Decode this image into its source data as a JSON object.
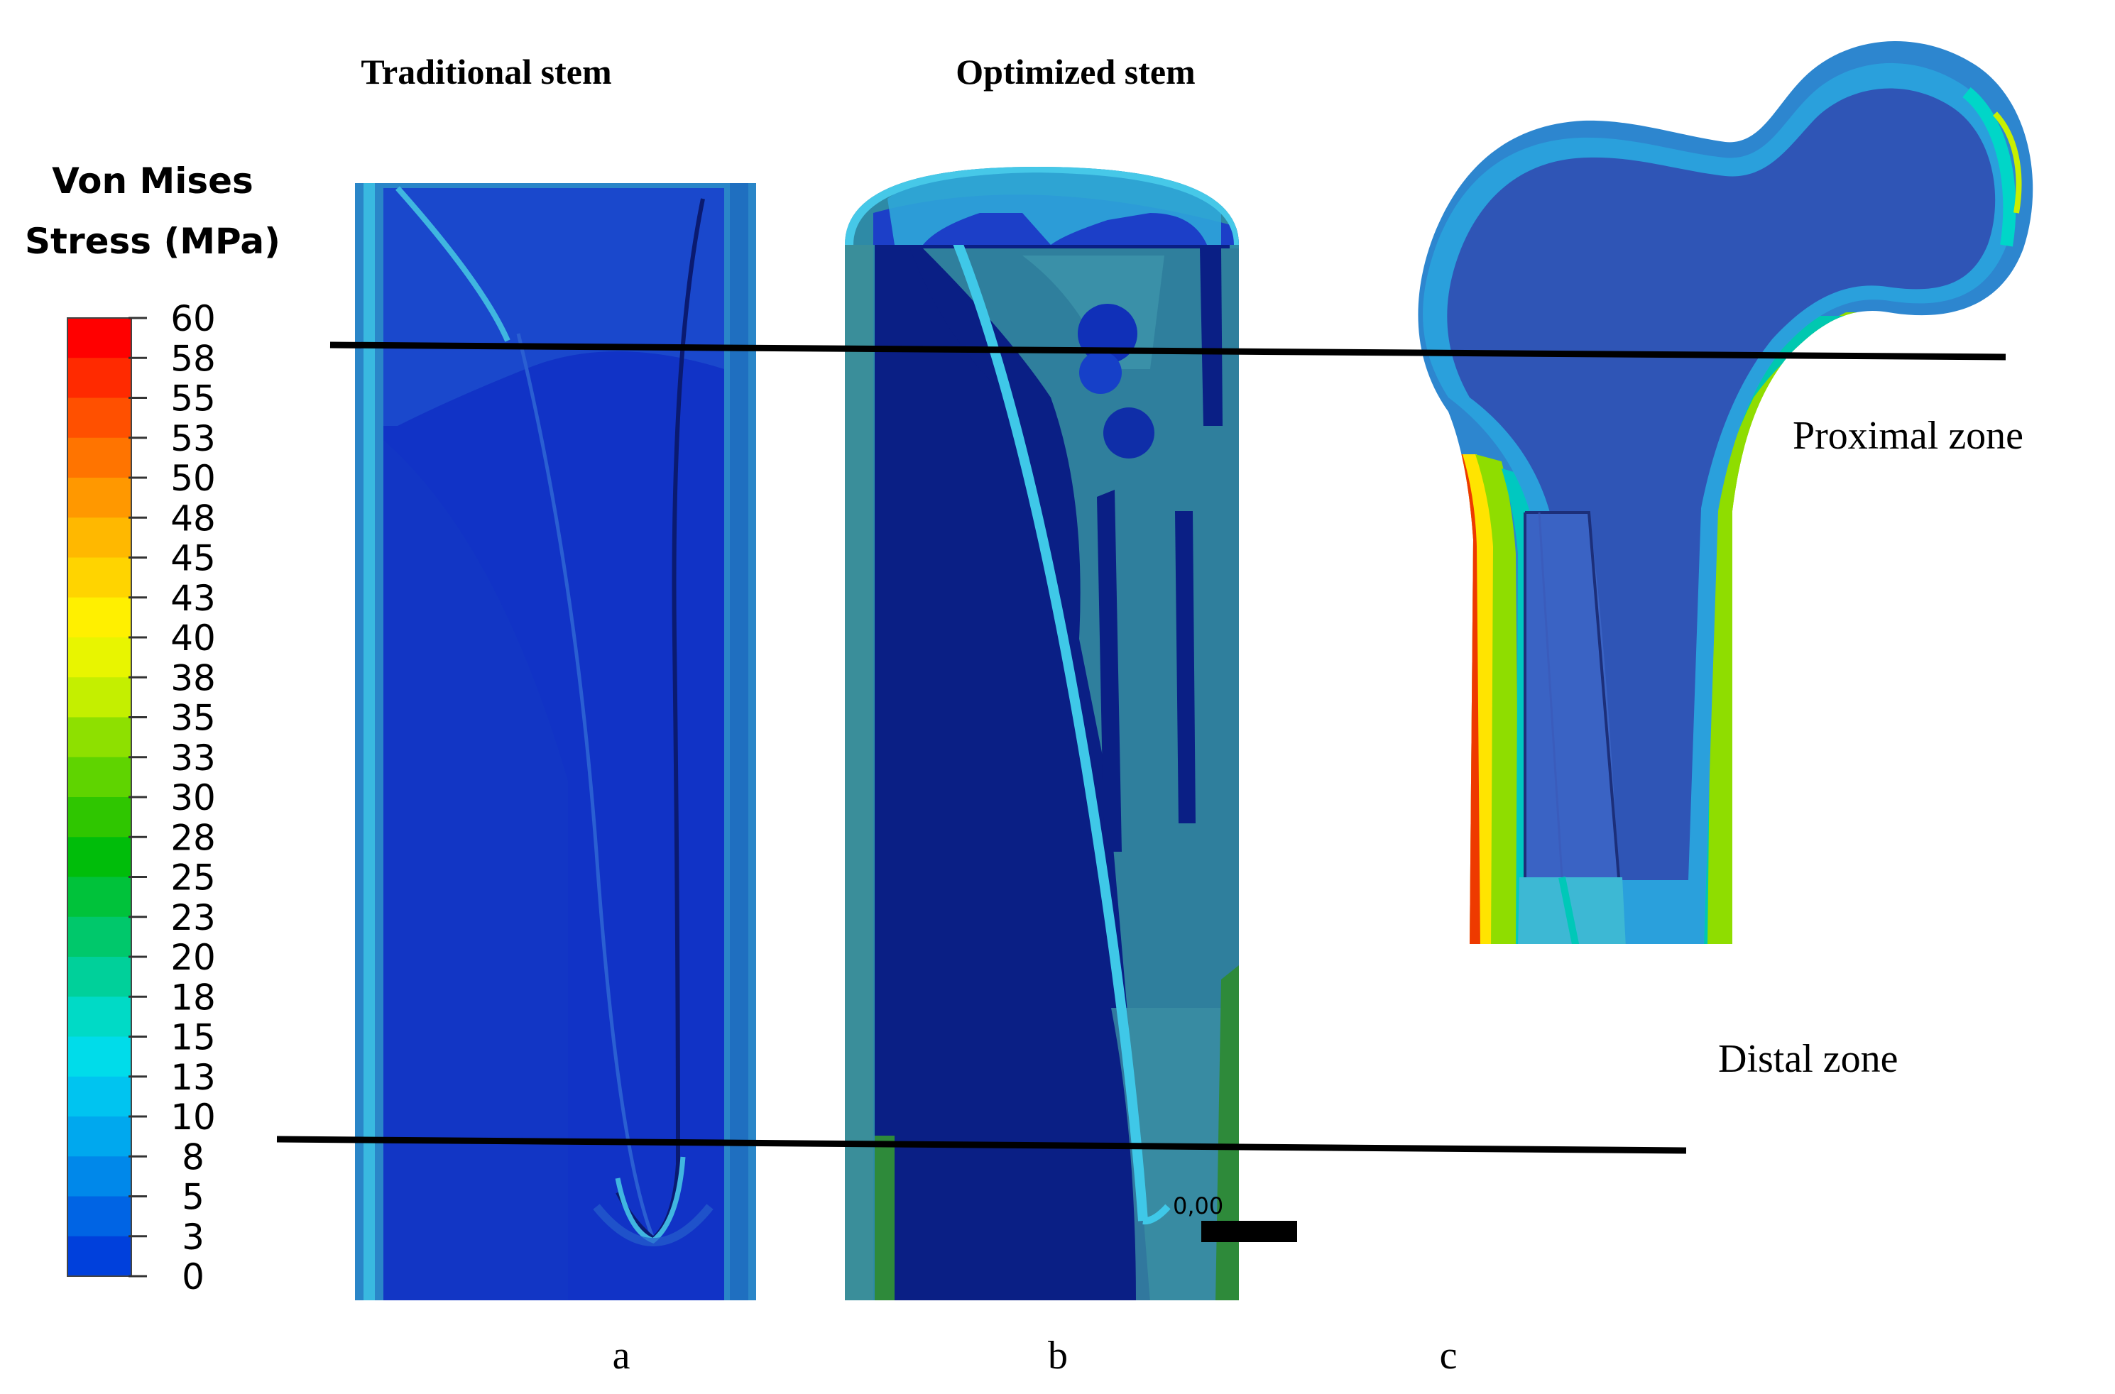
{
  "legend": {
    "title_line1": "Von Mises",
    "title_line2": "Stress (MPa)",
    "ticks": [
      "60",
      "58",
      "55",
      "53",
      "50",
      "48",
      "45",
      "43",
      "40",
      "38",
      "35",
      "33",
      "30",
      "28",
      "25",
      "23",
      "20",
      "18",
      "15",
      "13",
      "10",
      "8",
      "5",
      "3",
      "0"
    ],
    "colors": [
      "#ff0000",
      "#ff2a00",
      "#ff5000",
      "#ff7400",
      "#ff9800",
      "#ffb800",
      "#ffd400",
      "#fff000",
      "#e8f500",
      "#c4ef00",
      "#8ee000",
      "#5fd400",
      "#2fc600",
      "#00bd0a",
      "#00c23a",
      "#00c86b",
      "#00d09a",
      "#00dac6",
      "#00dcea",
      "#00c4f0",
      "#00a8ee",
      "#0088ea",
      "#0064e4",
      "#0040dc",
      "#0020d4"
    ]
  },
  "panels": {
    "a": {
      "title": "Traditional stem",
      "letter": "a"
    },
    "b": {
      "title": "Optimized stem",
      "letter": "b",
      "scale_label": "0,00"
    },
    "c": {
      "letter": "c"
    }
  },
  "zones": {
    "proximal": "Proximal zone",
    "distal": "Distal zone"
  }
}
